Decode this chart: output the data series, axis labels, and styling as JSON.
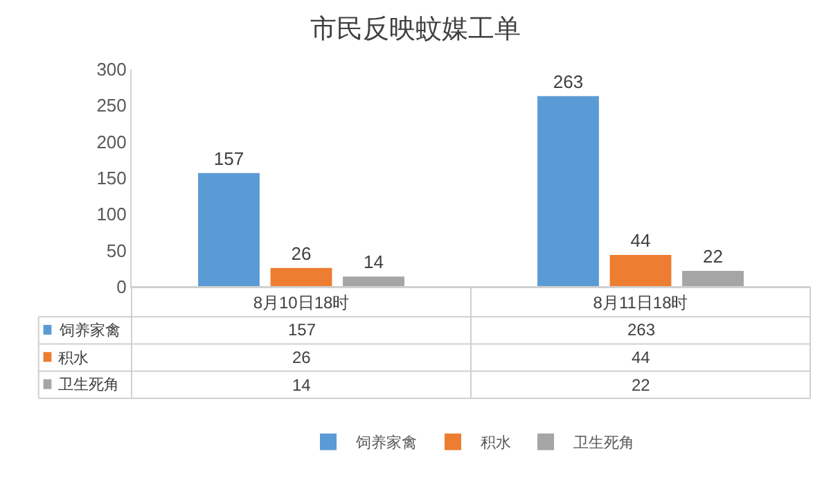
{
  "chart_data": {
    "type": "bar",
    "title": "市民反映蚊媒工单",
    "categories": [
      "8月10日18时",
      "8月11日18时"
    ],
    "series": [
      {
        "name": "饲养家禽",
        "color": "#5b9bd5",
        "values": [
          157,
          263
        ],
        "value_labels": [
          "157",
          "263"
        ]
      },
      {
        "name": "积水",
        "color": "#ed7d31",
        "values": [
          26,
          44
        ],
        "value_labels": [
          "26",
          "44"
        ]
      },
      {
        "name": "卫生死角",
        "color": "#a5a5a5",
        "values": [
          14,
          22
        ],
        "value_labels": [
          "14",
          "22"
        ]
      }
    ],
    "ylim": [
      0,
      300
    ],
    "yticks": [
      0,
      50,
      100,
      150,
      200,
      250,
      300
    ],
    "grid": false,
    "legend": "bottom",
    "annotations": [
      "157",
      "263",
      "26",
      "44",
      "14",
      "22"
    ]
  }
}
